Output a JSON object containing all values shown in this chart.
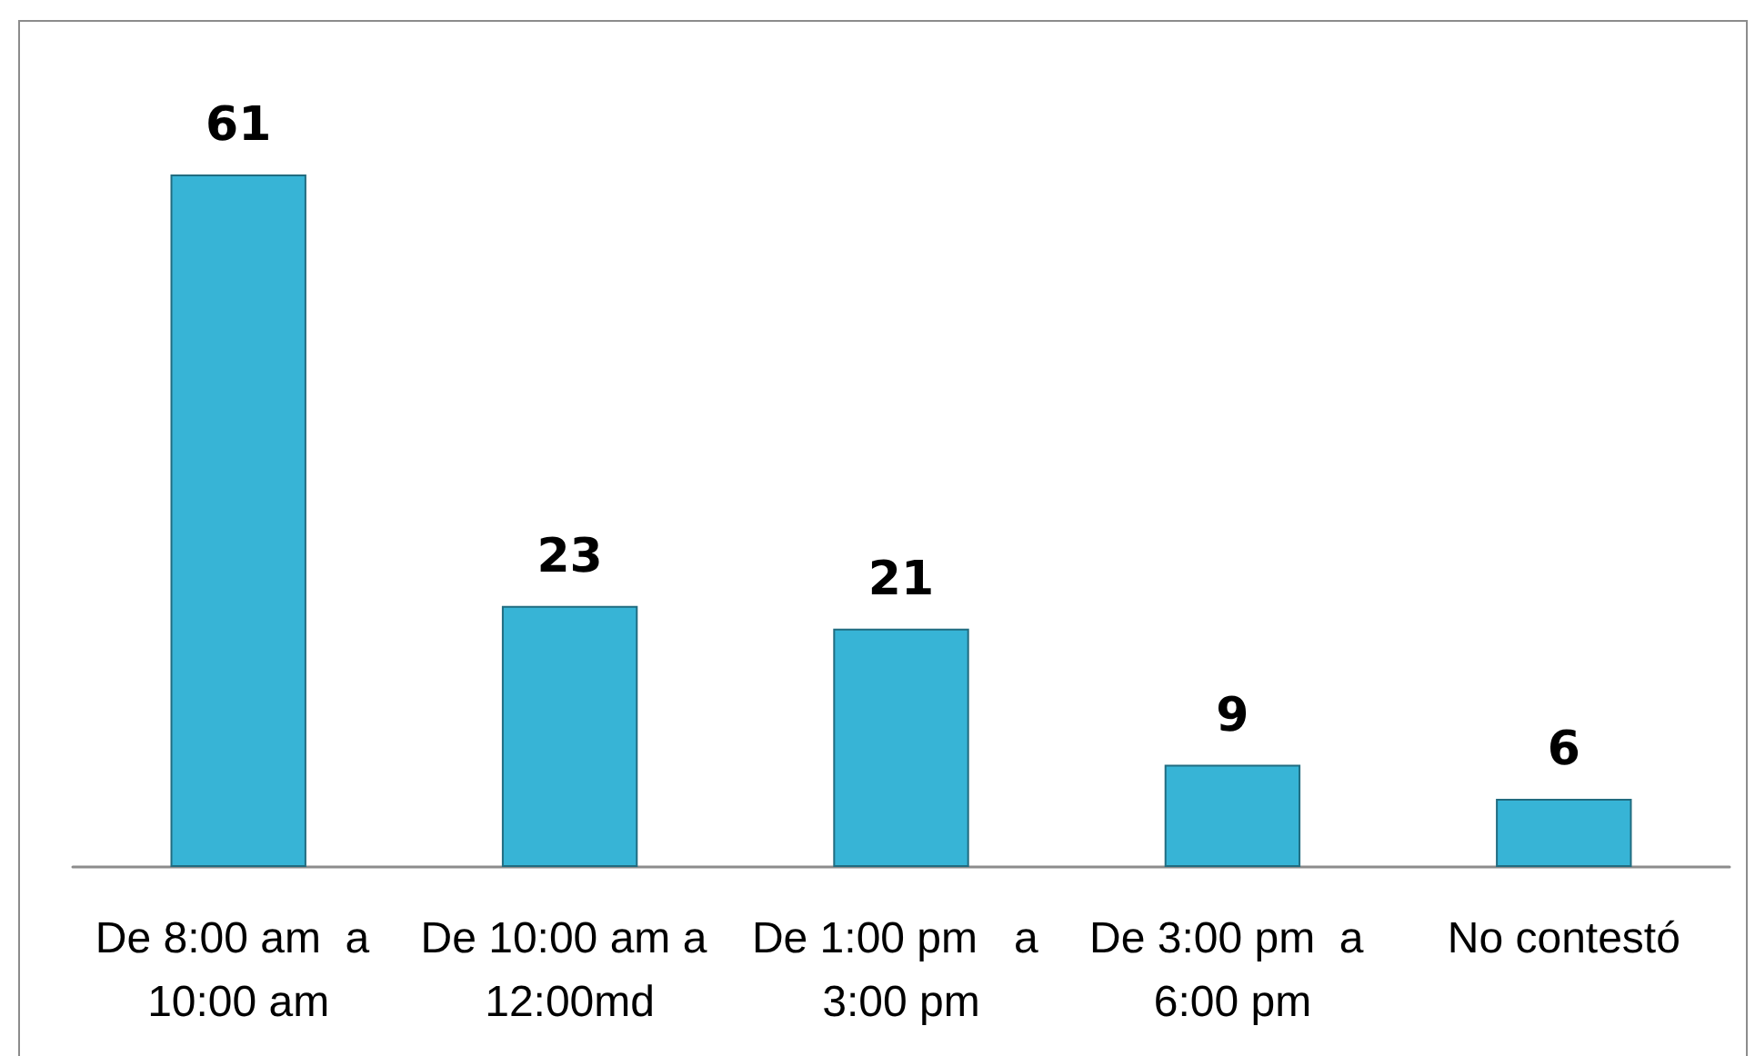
{
  "chart_data": {
    "type": "bar",
    "categories": [
      "De 8:00 am  a 10:00 am",
      "De 10:00 am a 12:00md",
      "De 1:00 pm   a 3:00 pm",
      "De 3:00 pm  a 6:00 pm",
      "No contestó"
    ],
    "values": [
      61,
      23,
      21,
      9,
      6
    ],
    "color": "#37b4d6",
    "data_labels": true
  }
}
